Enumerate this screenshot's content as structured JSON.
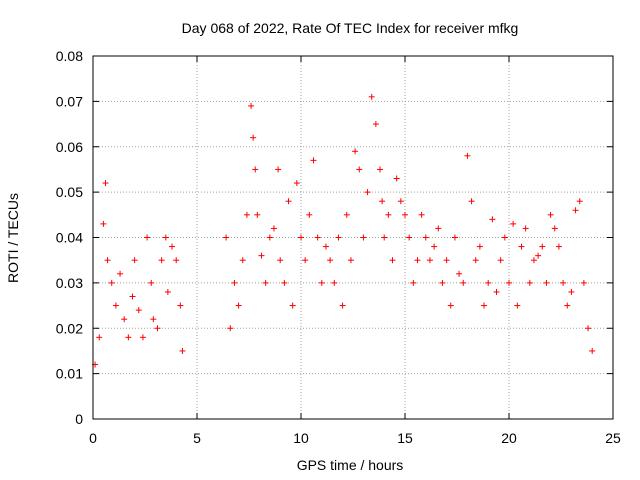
{
  "chart_data": {
    "type": "scatter",
    "title": "Day 068 of 2022, Rate Of TEC Index for receiver mfkg",
    "xlabel": "GPS time / hours",
    "ylabel": "ROTI / TECUs",
    "xlim": [
      0,
      25
    ],
    "ylim": [
      0,
      0.08
    ],
    "xticks": [
      "0",
      "5",
      "10",
      "15",
      "20",
      "25"
    ],
    "yticks": [
      "0",
      "0.01",
      "0.02",
      "0.03",
      "0.04",
      "0.05",
      "0.06",
      "0.07",
      "0.08"
    ],
    "grid": true,
    "marker": "+",
    "color": "#ff0000",
    "series": [
      {
        "x": [
          0.1,
          0.3,
          0.5,
          0.6,
          0.7,
          0.9,
          1.1,
          1.3,
          1.5,
          1.7,
          1.9,
          2.0,
          2.2,
          2.4,
          2.6,
          2.8,
          2.9,
          3.1,
          3.3,
          3.5,
          3.6,
          3.8,
          4.0,
          4.2,
          4.3,
          6.4,
          6.6,
          6.8,
          7.0,
          7.2,
          7.4,
          7.6,
          7.7,
          7.8,
          7.9,
          8.1,
          8.3,
          8.5,
          8.7,
          8.9,
          9.0,
          9.2,
          9.4,
          9.6,
          9.8,
          10.0,
          10.2,
          10.4,
          10.6,
          10.8,
          11.0,
          11.2,
          11.4,
          11.6,
          11.8,
          12.0,
          12.2,
          12.4,
          12.6,
          12.8,
          13.0,
          13.2,
          13.4,
          13.6,
          13.8,
          13.9,
          14.0,
          14.2,
          14.4,
          14.6,
          14.8,
          15.0,
          15.2,
          15.4,
          15.6,
          15.8,
          16.0,
          16.2,
          16.4,
          16.6,
          16.8,
          17.0,
          17.2,
          17.4,
          17.6,
          17.8,
          18.0,
          18.2,
          18.4,
          18.6,
          18.8,
          19.0,
          19.2,
          19.4,
          19.6,
          19.8,
          20.0,
          20.2,
          20.4,
          20.6,
          20.8,
          21.0,
          21.2,
          21.4,
          21.6,
          21.8,
          22.0,
          22.2,
          22.4,
          22.6,
          22.8,
          23.0,
          23.2,
          23.4,
          23.6,
          23.8,
          24.0
        ],
        "y": [
          0.012,
          0.018,
          0.043,
          0.052,
          0.035,
          0.03,
          0.025,
          0.032,
          0.022,
          0.018,
          0.027,
          0.035,
          0.024,
          0.018,
          0.04,
          0.03,
          0.022,
          0.02,
          0.035,
          0.04,
          0.028,
          0.038,
          0.035,
          0.025,
          0.015,
          0.04,
          0.02,
          0.03,
          0.025,
          0.035,
          0.045,
          0.069,
          0.062,
          0.055,
          0.045,
          0.036,
          0.03,
          0.04,
          0.042,
          0.055,
          0.035,
          0.03,
          0.048,
          0.025,
          0.052,
          0.04,
          0.035,
          0.045,
          0.057,
          0.04,
          0.03,
          0.038,
          0.035,
          0.03,
          0.04,
          0.025,
          0.045,
          0.035,
          0.059,
          0.055,
          0.04,
          0.05,
          0.071,
          0.065,
          0.055,
          0.048,
          0.04,
          0.045,
          0.035,
          0.053,
          0.048,
          0.045,
          0.04,
          0.03,
          0.035,
          0.045,
          0.04,
          0.035,
          0.038,
          0.042,
          0.03,
          0.035,
          0.025,
          0.04,
          0.032,
          0.03,
          0.058,
          0.048,
          0.035,
          0.038,
          0.025,
          0.03,
          0.044,
          0.028,
          0.035,
          0.04,
          0.03,
          0.043,
          0.025,
          0.038,
          0.042,
          0.03,
          0.035,
          0.036,
          0.038,
          0.03,
          0.045,
          0.042,
          0.038,
          0.03,
          0.025,
          0.028,
          0.046,
          0.048,
          0.03,
          0.02,
          0.015
        ]
      }
    ]
  }
}
